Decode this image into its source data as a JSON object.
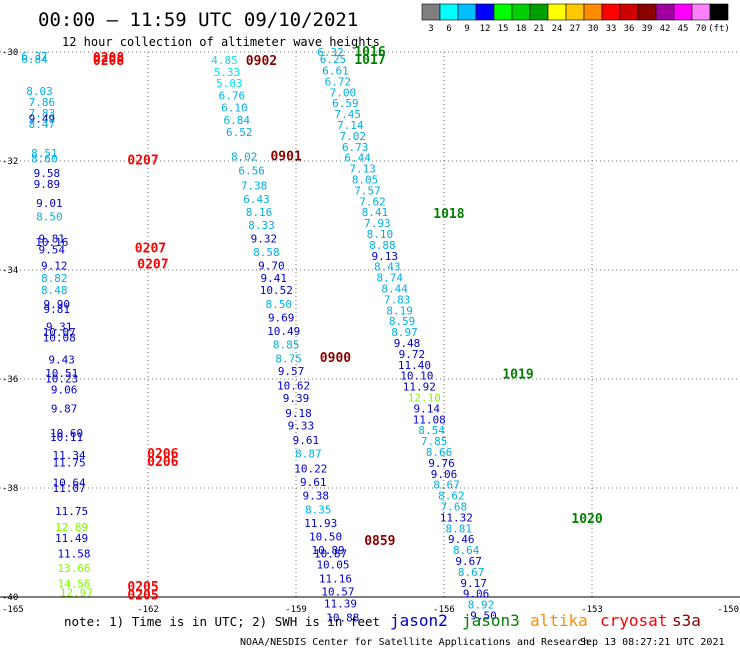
{
  "header": {
    "title": "00:00 – 11:59 UTC 09/10/2021",
    "subtitle": "12 hour collection of altimeter wave heights"
  },
  "colorbar": {
    "colors": [
      "#7f7f7f",
      "#00ffff",
      "#00bfff",
      "#0000ff",
      "#00ff00",
      "#00d000",
      "#00a000",
      "#ffff00",
      "#ffc800",
      "#ff8c00",
      "#ff0000",
      "#d00000",
      "#8b0000",
      "#a000a0",
      "#ff00ff",
      "#ff80ff",
      "#000000"
    ],
    "labels": [
      "3",
      "6",
      "9",
      "12",
      "15",
      "18",
      "21",
      "24",
      "27",
      "30",
      "33",
      "36",
      "39",
      "42",
      "45",
      "70",
      "(ft)"
    ]
  },
  "footer": {
    "note": "note:  1) Time is in UTC;  2) SWH is in feet",
    "credit": "NOAA/NESDIS Center for Satellite Applications and Research",
    "timestamp": "Sep 13 08:27:21 UTC 2021"
  },
  "legend": [
    {
      "name": "jason2",
      "color": "#0000cd"
    },
    {
      "name": "jason3",
      "color": "#008000"
    },
    {
      "name": "altika",
      "color": "#ff8c00"
    },
    {
      "name": "cryosat",
      "color": "#ff0000"
    },
    {
      "name": "s3a",
      "color": "#8b0000"
    }
  ],
  "chart_data": {
    "type": "scatter",
    "title": "00:00 – 11:59 UTC 09/10/2021",
    "xlim": [
      -165,
      -150
    ],
    "ylim": [
      -40,
      -30
    ],
    "x_ticks": [
      "-165",
      "-162",
      "-159",
      "-156",
      "-153",
      "-150"
    ],
    "y_ticks": [
      "-30",
      "-32",
      "-34",
      "-36",
      "-38",
      "-40"
    ],
    "grid": true,
    "series": [
      {
        "name": "cryosat",
        "color": "#ff0000",
        "labels": [
          {
            "lon": -162.8,
            "lat": -30.09,
            "text": "0208"
          },
          {
            "lon": -162.8,
            "lat": -30.15,
            "text": "0208"
          },
          {
            "lon": -162.1,
            "lat": -31.97,
            "text": "0207"
          },
          {
            "lon": -161.95,
            "lat": -33.59,
            "text": "0207"
          },
          {
            "lon": -161.9,
            "lat": -33.88,
            "text": "0207"
          },
          {
            "lon": -161.7,
            "lat": -37.36,
            "text": "0206"
          },
          {
            "lon": -161.7,
            "lat": -37.5,
            "text": "0206"
          },
          {
            "lon": -162.1,
            "lat": -39.8,
            "text": "0205"
          },
          {
            "lon": -162.1,
            "lat": -39.95,
            "text": "0205"
          }
        ],
        "points": [
          {
            "lon": -164.3,
            "lat": -30.07,
            "swh": 6.37
          },
          {
            "lon": -164.3,
            "lat": -30.13,
            "swh": 6.84
          },
          {
            "lon": -164.2,
            "lat": -30.72,
            "swh": 8.03
          },
          {
            "lon": -164.15,
            "lat": -30.92,
            "swh": 7.86
          },
          {
            "lon": -164.15,
            "lat": -31.12,
            "swh": 7.83
          },
          {
            "lon": -164.15,
            "lat": -31.22,
            "swh": 9.49
          },
          {
            "lon": -164.15,
            "lat": -31.32,
            "swh": 8.47
          },
          {
            "lon": -164.1,
            "lat": -31.85,
            "swh": 8.51
          },
          {
            "lon": -164.1,
            "lat": -31.95,
            "swh": 8.6
          },
          {
            "lon": -164.05,
            "lat": -32.22,
            "swh": 9.58
          },
          {
            "lon": -164.05,
            "lat": -32.42,
            "swh": 9.89
          },
          {
            "lon": -164.0,
            "lat": -32.77,
            "swh": 9.01
          },
          {
            "lon": -164.0,
            "lat": -33.02,
            "swh": 8.5
          },
          {
            "lon": -163.95,
            "lat": -33.42,
            "swh": 9.81
          },
          {
            "lon": -163.95,
            "lat": -33.49,
            "swh": 10.16
          },
          {
            "lon": -163.95,
            "lat": -33.62,
            "swh": 9.54
          },
          {
            "lon": -163.9,
            "lat": -33.92,
            "swh": 9.12
          },
          {
            "lon": -163.9,
            "lat": -34.15,
            "swh": 8.82
          },
          {
            "lon": -163.9,
            "lat": -34.37,
            "swh": 8.48
          },
          {
            "lon": -163.85,
            "lat": -34.62,
            "swh": 9.9
          },
          {
            "lon": -163.85,
            "lat": -34.72,
            "swh": 9.81
          },
          {
            "lon": -163.8,
            "lat": -35.04,
            "swh": 9.31
          },
          {
            "lon": -163.8,
            "lat": -35.14,
            "swh": 10.07
          },
          {
            "lon": -163.8,
            "lat": -35.24,
            "swh": 10.08
          },
          {
            "lon": -163.75,
            "lat": -35.64,
            "swh": 9.43
          },
          {
            "lon": -163.75,
            "lat": -35.89,
            "swh": 10.51
          },
          {
            "lon": -163.75,
            "lat": -35.99,
            "swh": 10.23
          },
          {
            "lon": -163.7,
            "lat": -36.19,
            "swh": 9.06
          },
          {
            "lon": -163.7,
            "lat": -36.54,
            "swh": 9.87
          },
          {
            "lon": -163.65,
            "lat": -36.99,
            "swh": 10.6
          },
          {
            "lon": -163.65,
            "lat": -37.06,
            "swh": 10.11
          },
          {
            "lon": -163.6,
            "lat": -37.39,
            "swh": 11.34
          },
          {
            "lon": -163.6,
            "lat": -37.53,
            "swh": 11.75
          },
          {
            "lon": -163.6,
            "lat": -37.9,
            "swh": 10.64
          },
          {
            "lon": -163.6,
            "lat": -38.0,
            "swh": 11.07
          },
          {
            "lon": -163.55,
            "lat": -38.42,
            "swh": 11.75
          },
          {
            "lon": -163.55,
            "lat": -38.72,
            "swh": 12.89
          },
          {
            "lon": -163.55,
            "lat": -38.92,
            "swh": 11.49
          },
          {
            "lon": -163.5,
            "lat": -39.2,
            "swh": 11.58
          },
          {
            "lon": -163.5,
            "lat": -39.47,
            "swh": 13.66
          },
          {
            "lon": -163.5,
            "lat": -39.75,
            "swh": 14.56
          },
          {
            "lon": -163.45,
            "lat": -39.92,
            "swh": 12.97
          }
        ]
      },
      {
        "name": "s3a",
        "color": "#8b0000",
        "labels": [
          {
            "lon": -159.7,
            "lat": -30.15,
            "text": "0902"
          },
          {
            "lon": -159.2,
            "lat": -31.9,
            "text": "0901"
          },
          {
            "lon": -158.2,
            "lat": -35.6,
            "text": "0900"
          },
          {
            "lon": -157.3,
            "lat": -38.95,
            "text": "0859"
          }
        ],
        "points": [
          {
            "lon": -160.45,
            "lat": -30.15,
            "swh": 4.85
          },
          {
            "lon": -160.4,
            "lat": -30.37,
            "swh": 5.33
          },
          {
            "lon": -160.35,
            "lat": -30.57,
            "swh": 5.03
          },
          {
            "lon": -160.3,
            "lat": -30.8,
            "swh": 6.76
          },
          {
            "lon": -160.25,
            "lat": -31.02,
            "swh": 6.1
          },
          {
            "lon": -160.2,
            "lat": -31.25,
            "swh": 6.84
          },
          {
            "lon": -160.15,
            "lat": -31.47,
            "swh": 6.52
          },
          {
            "lon": -160.05,
            "lat": -31.92,
            "swh": 8.02
          },
          {
            "lon": -159.9,
            "lat": -32.17,
            "swh": 6.56
          },
          {
            "lon": -159.85,
            "lat": -32.45,
            "swh": 7.38
          },
          {
            "lon": -159.8,
            "lat": -32.7,
            "swh": 6.43
          },
          {
            "lon": -159.75,
            "lat": -32.94,
            "swh": 8.16
          },
          {
            "lon": -159.7,
            "lat": -33.17,
            "swh": 8.33
          },
          {
            "lon": -159.65,
            "lat": -33.42,
            "swh": 9.32
          },
          {
            "lon": -159.6,
            "lat": -33.67,
            "swh": 8.58
          },
          {
            "lon": -159.5,
            "lat": -33.92,
            "swh": 9.7
          },
          {
            "lon": -159.45,
            "lat": -34.15,
            "swh": 9.41
          },
          {
            "lon": -159.4,
            "lat": -34.37,
            "swh": 10.52
          },
          {
            "lon": -159.35,
            "lat": -34.62,
            "swh": 8.5
          },
          {
            "lon": -159.3,
            "lat": -34.87,
            "swh": 9.69
          },
          {
            "lon": -159.25,
            "lat": -35.12,
            "swh": 10.49
          },
          {
            "lon": -159.2,
            "lat": -35.37,
            "swh": 8.85
          },
          {
            "lon": -159.15,
            "lat": -35.62,
            "swh": 8.75
          },
          {
            "lon": -159.1,
            "lat": -35.85,
            "swh": 9.57
          },
          {
            "lon": -159.05,
            "lat": -36.12,
            "swh": 10.62
          },
          {
            "lon": -159.0,
            "lat": -36.35,
            "swh": 9.39
          },
          {
            "lon": -158.95,
            "lat": -36.62,
            "swh": 9.18
          },
          {
            "lon": -158.9,
            "lat": -36.85,
            "swh": 9.33
          },
          {
            "lon": -158.8,
            "lat": -37.12,
            "swh": 9.61
          },
          {
            "lon": -158.75,
            "lat": -37.37,
            "swh": 8.87
          },
          {
            "lon": -158.7,
            "lat": -37.64,
            "swh": 10.22
          },
          {
            "lon": -158.65,
            "lat": -37.89,
            "swh": 9.61
          },
          {
            "lon": -158.6,
            "lat": -38.14,
            "swh": 9.38
          },
          {
            "lon": -158.55,
            "lat": -38.39,
            "swh": 8.35
          },
          {
            "lon": -158.5,
            "lat": -38.64,
            "swh": 11.93
          },
          {
            "lon": -158.4,
            "lat": -38.89,
            "swh": 10.5
          },
          {
            "lon": -158.35,
            "lat": -39.14,
            "swh": 10.89
          },
          {
            "lon": -158.3,
            "lat": -39.2,
            "swh": 10.87
          },
          {
            "lon": -158.25,
            "lat": -39.4,
            "swh": 10.05
          },
          {
            "lon": -158.2,
            "lat": -39.66,
            "swh": 11.16
          },
          {
            "lon": -158.15,
            "lat": -39.9,
            "swh": 10.57
          },
          {
            "lon": -158.1,
            "lat": -40.12,
            "swh": 11.39
          },
          {
            "lon": -158.05,
            "lat": -40.38,
            "swh": 10.88
          }
        ]
      },
      {
        "name": "jason3",
        "color": "#008000",
        "labels": [
          {
            "lon": -157.5,
            "lat": -29.98,
            "text": "1016"
          },
          {
            "lon": -157.5,
            "lat": -30.13,
            "text": "1017"
          },
          {
            "lon": -155.9,
            "lat": -32.95,
            "text": "1018"
          },
          {
            "lon": -154.5,
            "lat": -35.9,
            "text": "1019"
          },
          {
            "lon": -153.1,
            "lat": -38.55,
            "text": "1020"
          }
        ],
        "points": [
          {
            "lon": -158.3,
            "lat": -30.0,
            "swh": 6.32
          },
          {
            "lon": -158.25,
            "lat": -30.13,
            "swh": 6.25
          },
          {
            "lon": -158.2,
            "lat": -30.34,
            "swh": 6.61
          },
          {
            "lon": -158.15,
            "lat": -30.54,
            "swh": 6.72
          },
          {
            "lon": -158.05,
            "lat": -30.74,
            "swh": 7.0
          },
          {
            "lon": -158.0,
            "lat": -30.94,
            "swh": 6.59
          },
          {
            "lon": -157.95,
            "lat": -31.14,
            "swh": 7.45
          },
          {
            "lon": -157.9,
            "lat": -31.34,
            "swh": 7.14
          },
          {
            "lon": -157.85,
            "lat": -31.54,
            "swh": 7.02
          },
          {
            "lon": -157.8,
            "lat": -31.74,
            "swh": 6.73
          },
          {
            "lon": -157.75,
            "lat": -31.94,
            "swh": 6.44
          },
          {
            "lon": -157.65,
            "lat": -32.14,
            "swh": 7.13
          },
          {
            "lon": -157.6,
            "lat": -32.34,
            "swh": 8.05
          },
          {
            "lon": -157.55,
            "lat": -32.54,
            "swh": 7.57
          },
          {
            "lon": -157.45,
            "lat": -32.74,
            "swh": 7.62
          },
          {
            "lon": -157.4,
            "lat": -32.94,
            "swh": 8.41
          },
          {
            "lon": -157.35,
            "lat": -33.14,
            "swh": 7.93
          },
          {
            "lon": -157.3,
            "lat": -33.34,
            "swh": 8.1
          },
          {
            "lon": -157.25,
            "lat": -33.54,
            "swh": 8.88
          },
          {
            "lon": -157.2,
            "lat": -33.74,
            "swh": 9.13
          },
          {
            "lon": -157.15,
            "lat": -33.94,
            "swh": 8.43
          },
          {
            "lon": -157.1,
            "lat": -34.14,
            "swh": 8.74
          },
          {
            "lon": -157.0,
            "lat": -34.34,
            "swh": 8.44
          },
          {
            "lon": -156.95,
            "lat": -34.54,
            "swh": 7.83
          },
          {
            "lon": -156.9,
            "lat": -34.74,
            "swh": 8.19
          },
          {
            "lon": -156.85,
            "lat": -34.94,
            "swh": 8.59
          },
          {
            "lon": -156.8,
            "lat": -35.14,
            "swh": 8.97
          },
          {
            "lon": -156.75,
            "lat": -35.34,
            "swh": 9.48
          },
          {
            "lon": -156.65,
            "lat": -35.54,
            "swh": 9.72
          },
          {
            "lon": -156.6,
            "lat": -35.74,
            "swh": 11.4
          },
          {
            "lon": -156.55,
            "lat": -35.94,
            "swh": 10.1
          },
          {
            "lon": -156.5,
            "lat": -36.14,
            "swh": 11.92
          },
          {
            "lon": -156.4,
            "lat": -36.34,
            "swh": 12.1
          },
          {
            "lon": -156.35,
            "lat": -36.54,
            "swh": 9.14
          },
          {
            "lon": -156.3,
            "lat": -36.74,
            "swh": 11.08
          },
          {
            "lon": -156.25,
            "lat": -36.94,
            "swh": 8.54
          },
          {
            "lon": -156.2,
            "lat": -37.14,
            "swh": 7.85
          },
          {
            "lon": -156.1,
            "lat": -37.34,
            "swh": 8.66
          },
          {
            "lon": -156.05,
            "lat": -37.54,
            "swh": 9.76
          },
          {
            "lon": -156.0,
            "lat": -37.74,
            "swh": 9.06
          },
          {
            "lon": -155.95,
            "lat": -37.94,
            "swh": 8.67
          },
          {
            "lon": -155.85,
            "lat": -38.14,
            "swh": 8.62
          },
          {
            "lon": -155.8,
            "lat": -38.34,
            "swh": 7.68
          },
          {
            "lon": -155.75,
            "lat": -38.54,
            "swh": 11.32
          },
          {
            "lon": -155.7,
            "lat": -38.74,
            "swh": 8.81
          },
          {
            "lon": -155.65,
            "lat": -38.94,
            "swh": 9.46
          },
          {
            "lon": -155.55,
            "lat": -39.14,
            "swh": 8.64
          },
          {
            "lon": -155.5,
            "lat": -39.34,
            "swh": 9.67
          },
          {
            "lon": -155.45,
            "lat": -39.54,
            "swh": 8.67
          },
          {
            "lon": -155.4,
            "lat": -39.74,
            "swh": 9.17
          },
          {
            "lon": -155.35,
            "lat": -39.94,
            "swh": 9.06
          },
          {
            "lon": -155.25,
            "lat": -40.14,
            "swh": 8.92
          },
          {
            "lon": -155.2,
            "lat": -40.34,
            "swh": 9.5
          }
        ]
      }
    ]
  }
}
